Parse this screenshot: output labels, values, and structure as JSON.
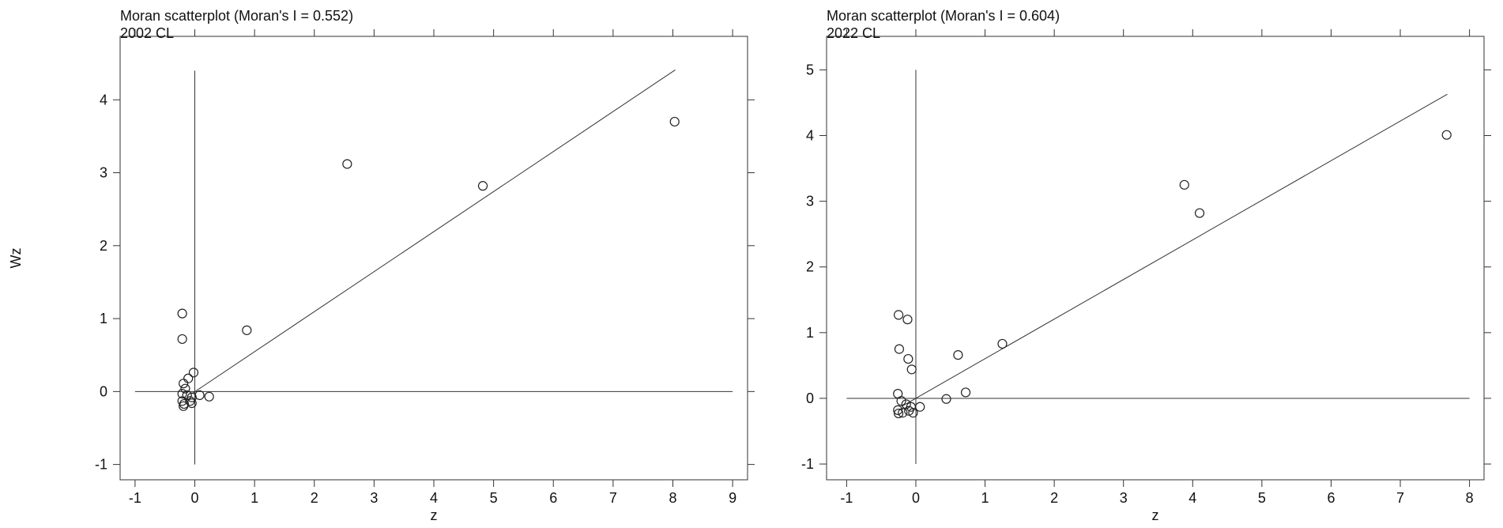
{
  "chart_data": [
    {
      "type": "scatter",
      "title": "Moran scatterplot (Moran's I = 0.552)",
      "subtitle": "2002 CL",
      "x_label": "z",
      "y_label": "Wz",
      "x": [
        8.03,
        2.55,
        4.82,
        0.87,
        -0.21,
        -0.21,
        -0.02,
        -0.11,
        -0.19,
        -0.16,
        -0.21,
        -0.13,
        -0.05,
        0.08,
        0.24,
        -0.21,
        -0.18,
        -0.08,
        -0.05,
        -0.19
      ],
      "values": [
        3.7,
        3.12,
        2.82,
        0.84,
        1.07,
        0.72,
        0.26,
        0.18,
        0.11,
        0.04,
        -0.03,
        -0.05,
        -0.08,
        -0.05,
        -0.07,
        -0.13,
        -0.17,
        -0.13,
        -0.16,
        -0.2
      ],
      "fit": {
        "x": [
          -0.05,
          8.04
        ],
        "values": [
          -0.03,
          4.41
        ]
      },
      "vline": {
        "x": 0,
        "y": [
          -1,
          4.4
        ]
      },
      "hline": {
        "y": 0,
        "x": [
          -1,
          9
        ]
      },
      "xlim": [
        -1.25,
        9.25
      ],
      "ylim": [
        -1.21,
        4.87
      ],
      "xticks": [
        -1,
        0,
        1,
        2,
        3,
        4,
        5,
        6,
        7,
        8,
        9
      ],
      "yticks": [
        -1,
        0,
        1,
        2,
        3,
        4
      ],
      "color": "#222222"
    },
    {
      "type": "scatter",
      "title": "Moran scatterplot (Moran's I = 0.604)",
      "subtitle": "2022 CL",
      "x_label": "z",
      "x": [
        7.67,
        3.88,
        4.1,
        1.25,
        0.61,
        0.72,
        0.44,
        -0.25,
        -0.12,
        -0.24,
        -0.11,
        -0.06,
        -0.26,
        -0.21,
        -0.14,
        -0.07,
        0.06,
        -0.26,
        -0.19,
        -0.1,
        -0.25,
        -0.04
      ],
      "values": [
        4.01,
        3.25,
        2.82,
        0.83,
        0.66,
        0.09,
        -0.01,
        1.27,
        1.2,
        0.75,
        0.6,
        0.44,
        0.07,
        -0.04,
        -0.09,
        -0.13,
        -0.13,
        -0.18,
        -0.22,
        -0.19,
        -0.23,
        -0.22
      ],
      "fit": {
        "x": [
          -0.2,
          7.68
        ],
        "values": [
          -0.12,
          4.63
        ]
      },
      "vline": {
        "x": 0,
        "y": [
          -1,
          5
        ]
      },
      "hline": {
        "y": 0,
        "x": [
          -1,
          8
        ]
      },
      "xlim": [
        -1.29,
        8.21
      ],
      "ylim": [
        -1.24,
        5.51
      ],
      "xticks": [
        -1,
        0,
        1,
        2,
        3,
        4,
        5,
        6,
        7,
        8
      ],
      "yticks": [
        -1,
        0,
        1,
        2,
        3,
        4,
        5
      ],
      "color": "#222222"
    }
  ]
}
